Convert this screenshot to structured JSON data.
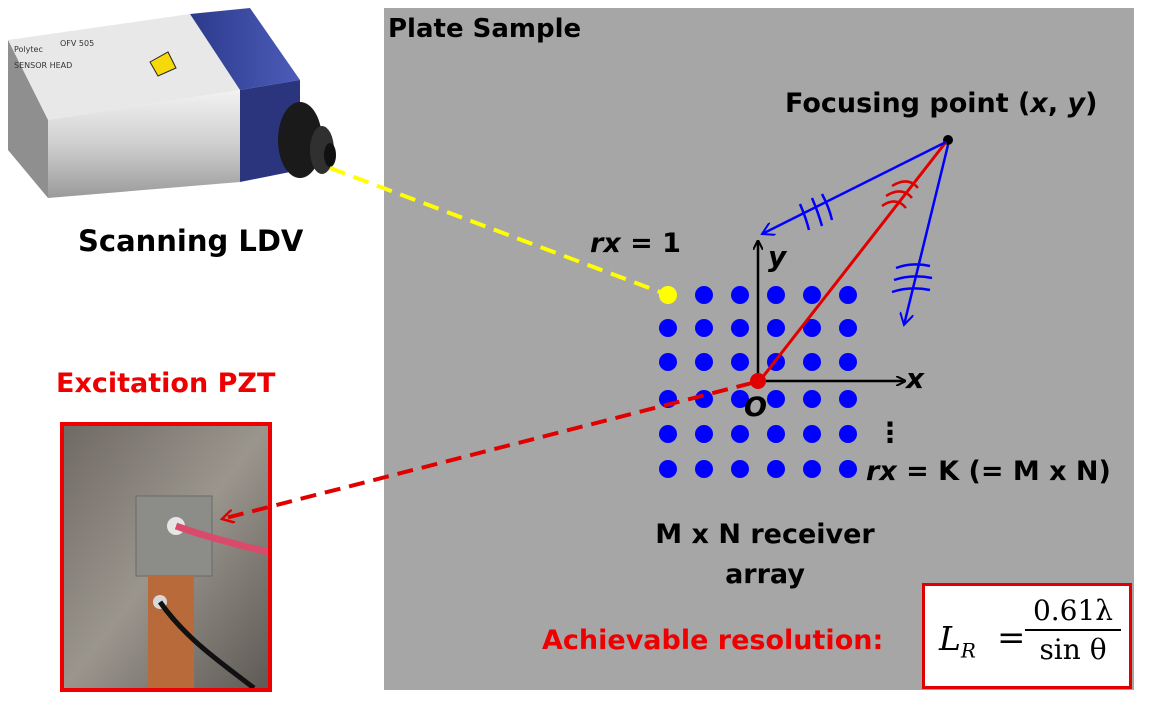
{
  "plate": {
    "title": "Plate Sample"
  },
  "ldv": {
    "caption": "Scanning LDV",
    "brand": "Polytec",
    "model": "OFV 505",
    "head": "SENSOR HEAD"
  },
  "pzt": {
    "caption": "Excitation PZT"
  },
  "focus": {
    "prefix": "Focusing point (",
    "x": "x",
    "sep": ", ",
    "y": "y",
    "suffix": ")"
  },
  "rx_first": {
    "var": "rx",
    "rest": " = 1"
  },
  "rx_last": {
    "var": "rx",
    "rest": " = K (= M x N)"
  },
  "axes": {
    "x": "x",
    "y": "y",
    "origin": "O"
  },
  "array_caption": {
    "line1": "M x N receiver",
    "line2": "array"
  },
  "ellipsis": "⋮",
  "resolution": {
    "label": "Achievable resolution:"
  },
  "formula": {
    "lhs": "L",
    "lhs_sub": "R",
    "eq": "=",
    "numerator": "0.61λ",
    "denominator": "sin θ"
  },
  "colors": {
    "plate": "#a6a6a6",
    "receiver": "#0000ff",
    "first_receiver": "#ffff00",
    "excitation": "#ee0000",
    "wave_blue": "#0000ff"
  }
}
